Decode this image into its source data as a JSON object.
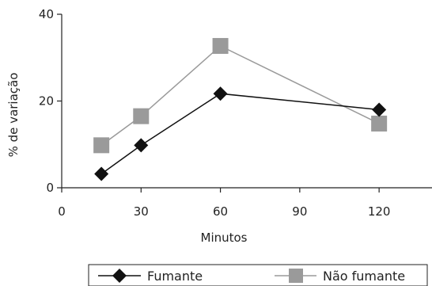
{
  "chart_data": {
    "type": "line",
    "title": "",
    "xlabel": "Minutos",
    "ylabel": "% de variação",
    "xlim": [
      0,
      140
    ],
    "ylim": [
      0,
      40
    ],
    "xticks": [
      0,
      30,
      60,
      90,
      120
    ],
    "yticks": [
      0,
      20,
      40
    ],
    "grid": false,
    "legend_position": "bottom",
    "series": [
      {
        "name": "Fumante",
        "marker": "diamond",
        "color": "#111111",
        "x": [
          15,
          30,
          60,
          120
        ],
        "y": [
          3.2,
          9.8,
          21.7,
          18.0
        ]
      },
      {
        "name": "Não fumante",
        "marker": "square",
        "color": "#9a9a9a",
        "x": [
          15,
          30,
          60,
          120
        ],
        "y": [
          9.8,
          16.5,
          32.7,
          14.8
        ]
      }
    ]
  }
}
